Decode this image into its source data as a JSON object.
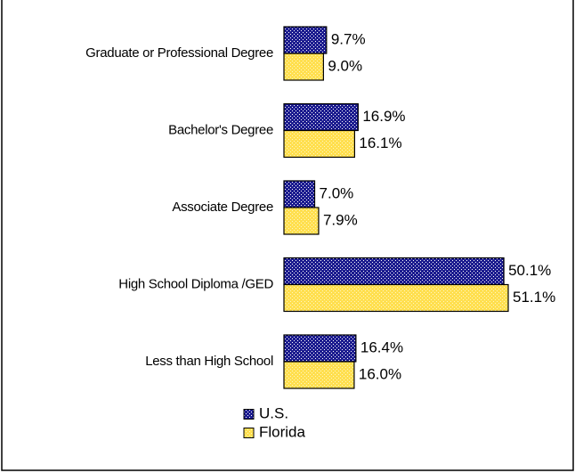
{
  "chart_data": {
    "type": "hbar",
    "categories": [
      "Graduate or Professional Degree",
      "Bachelor's Degree",
      "Associate Degree",
      "High School Diploma /GED",
      "Less than High School"
    ],
    "series": [
      {
        "name": "U.S.",
        "color": "#1c1c8f",
        "values": [
          9.7,
          16.9,
          7.0,
          50.1,
          16.4
        ],
        "value_labels": [
          "9.7%",
          "16.9%",
          "7.0%",
          "50.1%",
          "16.4%"
        ]
      },
      {
        "name": "Florida",
        "color": "#ffdf4f",
        "values": [
          9.0,
          16.1,
          7.9,
          51.1,
          16.0
        ],
        "value_labels": [
          "9.0%",
          "16.1%",
          "7.9%",
          "51.1%",
          "16.0%"
        ]
      }
    ]
  }
}
